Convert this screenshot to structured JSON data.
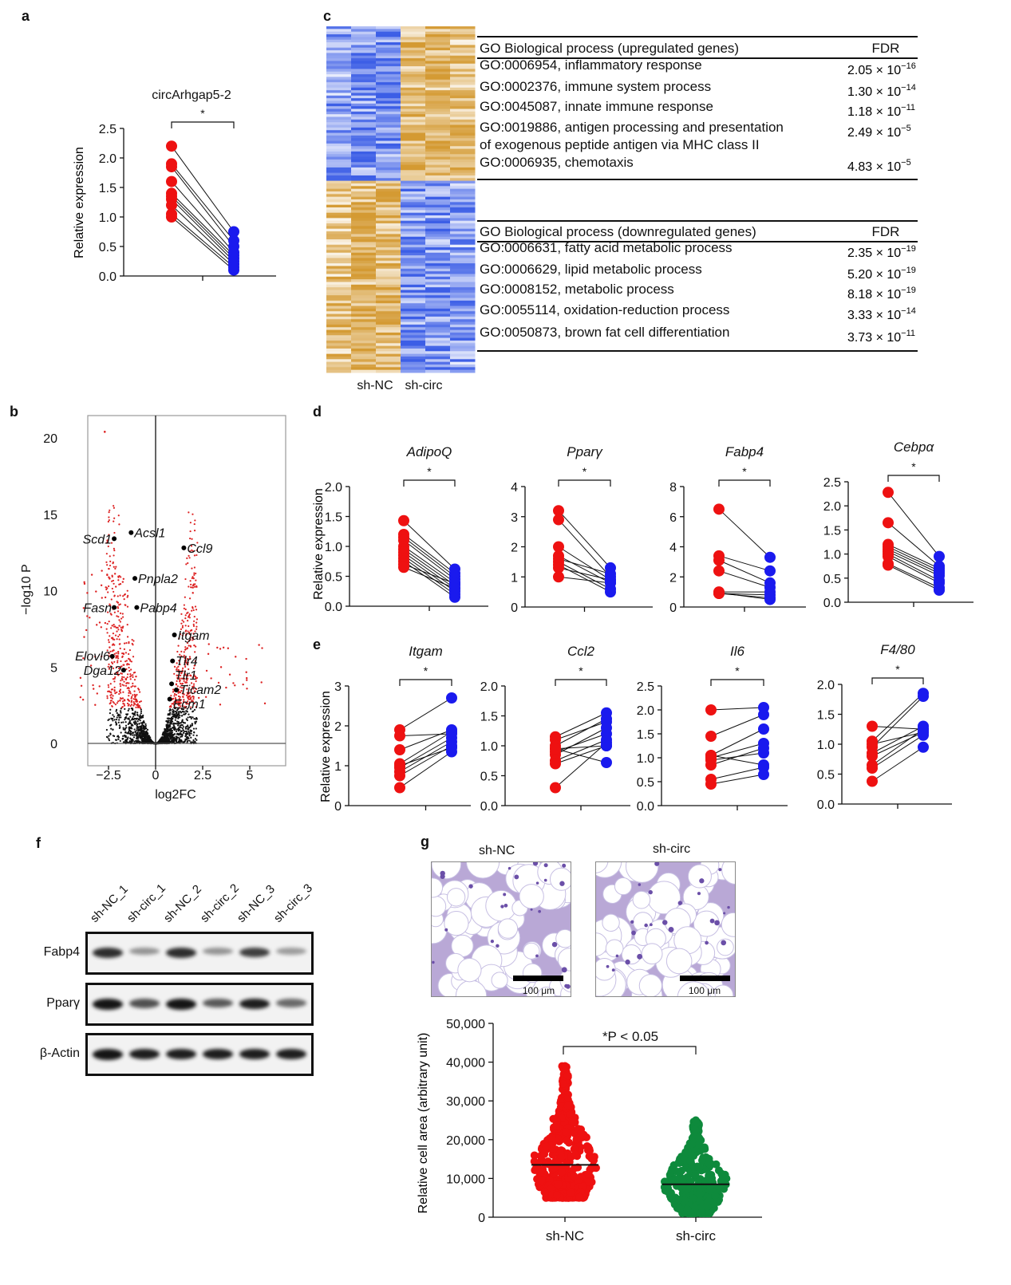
{
  "panel_letters": [
    "a",
    "b",
    "c",
    "d",
    "e",
    "f",
    "g"
  ],
  "colors": {
    "red": "#ee1111",
    "blue": "#1a1aee",
    "green": "#0e8a3c",
    "volcano_sig": "#dd2222",
    "heat_blue": "#3c5ee6",
    "heat_orange": "#d49a33"
  },
  "chart_data": [
    {
      "panel": "a",
      "type": "paired-dot",
      "title": "circArhgap5-2",
      "ylabel": "Relative expression",
      "ylim": [
        0,
        2.5
      ],
      "yticks": [
        "0.0",
        "0.5",
        "1.0",
        "1.5",
        "2.0",
        "2.5"
      ],
      "significance": "*",
      "pairs": [
        [
          2.2,
          0.75
        ],
        [
          1.9,
          0.6
        ],
        [
          1.85,
          0.5
        ],
        [
          1.6,
          0.4
        ],
        [
          1.4,
          0.35
        ],
        [
          1.35,
          0.3
        ],
        [
          1.3,
          0.25
        ],
        [
          1.2,
          0.2
        ],
        [
          1.05,
          0.15
        ],
        [
          1.0,
          0.1
        ]
      ]
    },
    {
      "panel": "b",
      "type": "scatter",
      "xlabel": "log2FC",
      "ylabel": "−log10 P",
      "xlim": [
        -4.5,
        7
      ],
      "ylim": [
        -1.2,
        21.5
      ],
      "xticks": [
        "−2.5",
        "0",
        "2.5",
        "5"
      ],
      "yticks": [
        "0",
        "5",
        "10",
        "15",
        "20"
      ],
      "labeled_genes": [
        {
          "name": "Scd1",
          "x": -2.2,
          "y": 13.4
        },
        {
          "name": "Acsl1",
          "x": -1.3,
          "y": 13.8
        },
        {
          "name": "Ccl9",
          "x": 1.5,
          "y": 12.8
        },
        {
          "name": "Pnpla2",
          "x": -1.1,
          "y": 10.8
        },
        {
          "name": "Fasn",
          "x": -2.2,
          "y": 8.9
        },
        {
          "name": "Pabp4",
          "x": -1.0,
          "y": 8.9
        },
        {
          "name": "Itgam",
          "x": 1.0,
          "y": 7.1
        },
        {
          "name": "Elovl6",
          "x": -2.3,
          "y": 5.7
        },
        {
          "name": "Tlr4",
          "x": 0.9,
          "y": 5.4
        },
        {
          "name": "Dga12",
          "x": -1.7,
          "y": 4.8
        },
        {
          "name": "Tlr1",
          "x": 0.85,
          "y": 3.9
        },
        {
          "name": "Ticam2",
          "x": 1.1,
          "y": 3.5
        },
        {
          "name": "Ecm1",
          "x": 0.75,
          "y": 2.9
        }
      ]
    },
    {
      "panel": "c",
      "type": "heatmap",
      "column_groups": [
        "sh-NC",
        "sh-circ"
      ],
      "tables": [
        {
          "header": "GO Biological process (upregulated genes)",
          "fdr_header": "FDR",
          "rows": [
            {
              "term": "GO:0006954, inflammatory response",
              "mant": "2.05",
              "exp": "−16"
            },
            {
              "term": "GO:0002376, immune system process",
              "mant": "1.30",
              "exp": "−14"
            },
            {
              "term": "GO:0045087, innate immune response",
              "mant": "1.18",
              "exp": "−11"
            },
            {
              "term": "GO:0019886, antigen processing and presentation",
              "term2": "of exogenous peptide antigen via MHC class II",
              "mant": "2.49",
              "exp": "−5"
            },
            {
              "term": "GO:0006935, chemotaxis",
              "mant": "4.83",
              "exp": "−5"
            }
          ]
        },
        {
          "header": "GO Biological process (downregulated genes)",
          "fdr_header": "FDR",
          "rows": [
            {
              "term": "GO:0006631, fatty acid metabolic process",
              "mant": "2.35",
              "exp": "−19"
            },
            {
              "term": "GO:0006629, lipid metabolic process",
              "mant": "5.20",
              "exp": "−19"
            },
            {
              "term": "GO:0008152, metabolic process",
              "mant": "8.18",
              "exp": "−19"
            },
            {
              "term": "GO:0055114, oxidation-reduction process",
              "mant": "3.33",
              "exp": "−14"
            },
            {
              "term": "GO:0050873, brown fat cell differentiation",
              "mant": "3.73",
              "exp": "−11"
            }
          ]
        }
      ]
    },
    {
      "panel": "d",
      "type": "paired-dot",
      "ylabel": "Relative expression",
      "significance": "*",
      "plots": [
        {
          "title": "AdipoQ",
          "ylim": [
            0,
            2
          ],
          "yticks": [
            "0.0",
            "0.5",
            "1.0",
            "1.5",
            "2.0"
          ],
          "pairs": [
            [
              1.43,
              0.62
            ],
            [
              1.2,
              0.55
            ],
            [
              1.15,
              0.5
            ],
            [
              1.1,
              0.45
            ],
            [
              1.0,
              0.4
            ],
            [
              0.95,
              0.35
            ],
            [
              0.9,
              0.3
            ],
            [
              0.85,
              0.25
            ],
            [
              0.8,
              0.2
            ],
            [
              0.75,
              0.15
            ],
            [
              0.7,
              0.38
            ],
            [
              0.65,
              0.3
            ]
          ]
        },
        {
          "title": "Pparγ",
          "ylim": [
            0,
            4
          ],
          "yticks": [
            "0",
            "1",
            "2",
            "3",
            "4"
          ],
          "pairs": [
            [
              3.2,
              1.3
            ],
            [
              2.9,
              1.0
            ],
            [
              2.0,
              0.9
            ],
            [
              1.7,
              0.8
            ],
            [
              1.6,
              1.1
            ],
            [
              1.5,
              0.6
            ],
            [
              1.4,
              0.5
            ],
            [
              1.3,
              0.9
            ],
            [
              1.0,
              0.8
            ]
          ]
        },
        {
          "title": "Fabp4",
          "ylim": [
            0,
            8
          ],
          "yticks": [
            "0",
            "2",
            "4",
            "6",
            "8"
          ],
          "pairs": [
            [
              6.5,
              3.3
            ],
            [
              3.4,
              2.4
            ],
            [
              3.1,
              1.6
            ],
            [
              2.4,
              1.3
            ],
            [
              1.0,
              1.0
            ],
            [
              0.9,
              0.8
            ],
            [
              0.9,
              0.6
            ],
            [
              0.95,
              0.5
            ]
          ]
        },
        {
          "title": "Cebpα",
          "ylim": [
            0,
            2.5
          ],
          "yticks": [
            "0.0",
            "0.5",
            "1.0",
            "1.5",
            "2.0",
            "2.5"
          ],
          "pairs": [
            [
              2.28,
              0.95
            ],
            [
              1.65,
              0.75
            ],
            [
              1.2,
              0.7
            ],
            [
              1.15,
              0.65
            ],
            [
              1.1,
              0.6
            ],
            [
              1.05,
              0.55
            ],
            [
              1.0,
              0.45
            ],
            [
              0.95,
              0.4
            ],
            [
              0.8,
              0.3
            ],
            [
              0.77,
              0.25
            ]
          ]
        }
      ]
    },
    {
      "panel": "e",
      "type": "paired-dot",
      "ylabel": "Relative expression",
      "significance": "*",
      "plots": [
        {
          "title": "Itgam",
          "ylim": [
            0,
            3
          ],
          "yticks": [
            "0",
            "1",
            "2",
            "3"
          ],
          "pairs": [
            [
              1.9,
              2.7
            ],
            [
              1.75,
              1.8
            ],
            [
              1.4,
              1.9
            ],
            [
              1.05,
              1.85
            ],
            [
              0.95,
              1.7
            ],
            [
              0.85,
              1.6
            ],
            [
              0.75,
              1.5
            ],
            [
              0.45,
              1.35
            ],
            [
              1.0,
              1.45
            ]
          ]
        },
        {
          "title": "Ccl2",
          "ylim": [
            0,
            2
          ],
          "yticks": [
            "0.0",
            "0.5",
            "1.0",
            "1.5",
            "2.0"
          ],
          "pairs": [
            [
              1.15,
              1.55
            ],
            [
              1.1,
              1.4
            ],
            [
              1.0,
              1.45
            ],
            [
              0.95,
              0.72
            ],
            [
              0.9,
              1.2
            ],
            [
              0.85,
              1.3
            ],
            [
              0.75,
              1.1
            ],
            [
              0.7,
              1.0
            ],
            [
              0.3,
              1.05
            ],
            [
              0.95,
              1.0
            ]
          ]
        },
        {
          "title": "Il6",
          "ylim": [
            0,
            2.5
          ],
          "yticks": [
            "0.0",
            "0.5",
            "1.0",
            "1.5",
            "2.0",
            "2.5"
          ],
          "pairs": [
            [
              2.0,
              2.05
            ],
            [
              1.45,
              1.9
            ],
            [
              1.05,
              1.6
            ],
            [
              1.0,
              1.3
            ],
            [
              0.95,
              1.1
            ],
            [
              0.85,
              1.2
            ],
            [
              0.55,
              0.8
            ],
            [
              0.45,
              0.65
            ],
            [
              1.05,
              0.85
            ]
          ]
        },
        {
          "title": "F4/80",
          "ylim": [
            0,
            2
          ],
          "yticks": [
            "0.0",
            "0.5",
            "1.0",
            "1.5",
            "2.0"
          ],
          "pairs": [
            [
              1.3,
              1.25
            ],
            [
              1.05,
              1.85
            ],
            [
              0.95,
              1.8
            ],
            [
              0.85,
              1.3
            ],
            [
              0.8,
              1.2
            ],
            [
              0.65,
              1.25
            ],
            [
              0.6,
              1.15
            ],
            [
              0.38,
              0.95
            ],
            [
              1.0,
              1.2
            ]
          ]
        }
      ]
    },
    {
      "panel": "f",
      "type": "western-blot",
      "lanes": [
        "sh-NC_1",
        "sh-circ_1",
        "sh-NC_2",
        "sh-circ_2",
        "sh-NC_3",
        "sh-circ_3"
      ],
      "blots": [
        {
          "label": "Fabp4",
          "intensity": [
            0.8,
            0.2,
            0.8,
            0.2,
            0.7,
            0.15
          ]
        },
        {
          "label": "Pparγ",
          "intensity": [
            0.95,
            0.6,
            0.95,
            0.55,
            0.9,
            0.45
          ]
        },
        {
          "label": "β-Actin",
          "intensity": [
            0.95,
            0.9,
            0.9,
            0.9,
            0.9,
            0.9
          ]
        }
      ]
    },
    {
      "panel": "g",
      "type": "dot-scatter",
      "images": [
        {
          "label": "sh-NC",
          "scale": "100 μm"
        },
        {
          "label": "sh-circ",
          "scale": "100 μm"
        }
      ],
      "categories": [
        "sh-NC",
        "sh-circ"
      ],
      "ylabel": "Relative cell area (arbitrary unit)",
      "ylim": [
        0,
        50000
      ],
      "yticks": [
        "0",
        "10,000",
        "20,000",
        "30,000",
        "40,000",
        "50,000"
      ],
      "annotation": "*P < 0.05",
      "means": [
        13500,
        8500
      ],
      "ranges": [
        [
          5000,
          39000
        ],
        [
          1000,
          25000
        ]
      ]
    }
  ]
}
